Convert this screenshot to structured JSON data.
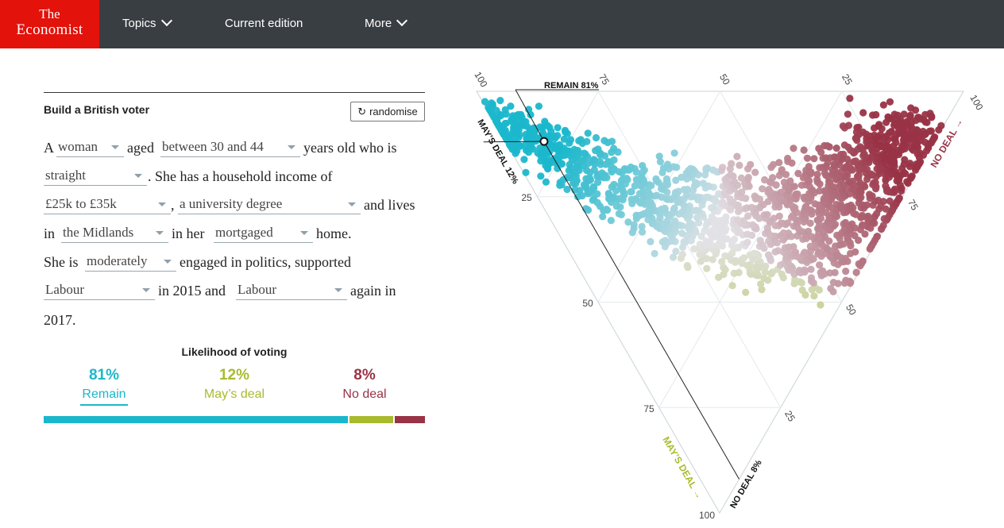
{
  "header": {
    "logo": {
      "line1": "The",
      "line2": "Economist"
    },
    "nav": [
      {
        "label": "Topics",
        "has_dropdown": true
      },
      {
        "label": "Current edition",
        "has_dropdown": false
      },
      {
        "label": "More",
        "has_dropdown": true
      }
    ]
  },
  "builder": {
    "title": "Build a British voter",
    "randomise_label": "randomise",
    "text": {
      "a": "A",
      "aged": "aged",
      "years_old": "years old who is",
      "she_has": ". She has a household income of",
      "comma": ",",
      "and_lives": "and lives",
      "in": "in",
      "in_her": "in her",
      "home": "home.",
      "she_is": "She is",
      "engaged": "engaged in politics, supported",
      "in_2015": "in 2015 and",
      "again_in": "again in",
      "year": "2017."
    },
    "selects": {
      "gender": "woman",
      "age": "between 30 and 44",
      "orientation": "straight",
      "income": "£25k to £35k",
      "education": "a university degree",
      "region": "the Midlands",
      "housing": "mortgaged",
      "engagement": "moderately",
      "vote_2015": "Labour",
      "vote_2017": "Labour"
    }
  },
  "likelihood": {
    "title": "Likelihood of voting",
    "outcomes": [
      {
        "pct": "81%",
        "label": "Remain",
        "value": 81,
        "color": "#1bb7cc"
      },
      {
        "pct": "12%",
        "label": "May’s deal",
        "value": 12,
        "color": "#a9ba2f"
      },
      {
        "pct": "8%",
        "label": "No deal",
        "value": 8,
        "color": "#993346"
      }
    ]
  },
  "ternary": {
    "axis_labels": {
      "remain_marker": "REMAIN 81%",
      "mays_marker": "MAY’S DEAL 12%",
      "nodeal_marker": "NO DEAL 8%",
      "no_deal_axis": "NO DEAL →",
      "mays_deal_axis": "MAY’S DEAL →"
    },
    "ticks": {
      "t25": "25",
      "t50": "50",
      "t75": "75",
      "t100": "100"
    },
    "colors": {
      "remain": "#1bb7cc",
      "mays": "#a9ba2f",
      "nodeal": "#993346",
      "neutral": "#e2e2e6"
    }
  }
}
